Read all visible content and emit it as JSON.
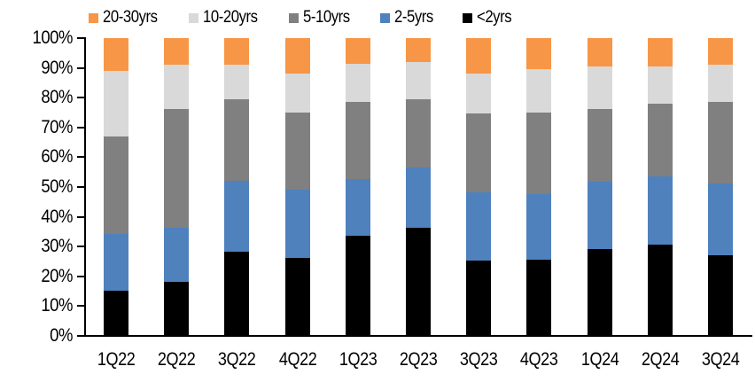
{
  "chart_data": {
    "type": "bar",
    "subtype": "stacked-100-percent",
    "title": "",
    "xlabel": "",
    "ylabel": "",
    "grid": false,
    "legend_position": "top",
    "legend_order": [
      "20-30yrs",
      "10-20yrs",
      "5-10yrs",
      "2-5yrs",
      "<2yrs"
    ],
    "categories": [
      "1Q22",
      "2Q22",
      "3Q22",
      "4Q22",
      "1Q23",
      "2Q23",
      "3Q23",
      "4Q23",
      "1Q24",
      "2Q24",
      "3Q24"
    ],
    "series": [
      {
        "name": "<2yrs",
        "color": "#000000",
        "values": [
          15,
          18,
          28,
          26,
          33.5,
          36,
          25,
          25.5,
          29,
          30.5,
          27
        ]
      },
      {
        "name": "2-5yrs",
        "color": "#4F81BD",
        "values": [
          19,
          18,
          24,
          23,
          19,
          20.5,
          23,
          22,
          22.5,
          23,
          24
        ]
      },
      {
        "name": "5-10yrs",
        "color": "#808080",
        "values": [
          33,
          40,
          27.5,
          26,
          26,
          23,
          26.5,
          27.5,
          24.5,
          24.5,
          27.5
        ]
      },
      {
        "name": "10-20yrs",
        "color": "#D9D9D9",
        "values": [
          22,
          15,
          11.5,
          13,
          13,
          12.5,
          13.5,
          14.5,
          14.5,
          12.5,
          12.5
        ]
      },
      {
        "name": "20-30yrs",
        "color": "#F79646",
        "values": [
          11,
          9,
          9,
          12,
          8.5,
          8,
          12,
          10.5,
          9.5,
          9.5,
          9
        ]
      }
    ],
    "stack_note": "series listed bottom-to-top; values are percent of total, each category sums to 100",
    "y_axis": {
      "min": 0,
      "max": 100,
      "tick_step": 10,
      "tick_labels": [
        "0%",
        "10%",
        "20%",
        "30%",
        "40%",
        "50%",
        "60%",
        "70%",
        "80%",
        "90%",
        "100%"
      ]
    }
  }
}
